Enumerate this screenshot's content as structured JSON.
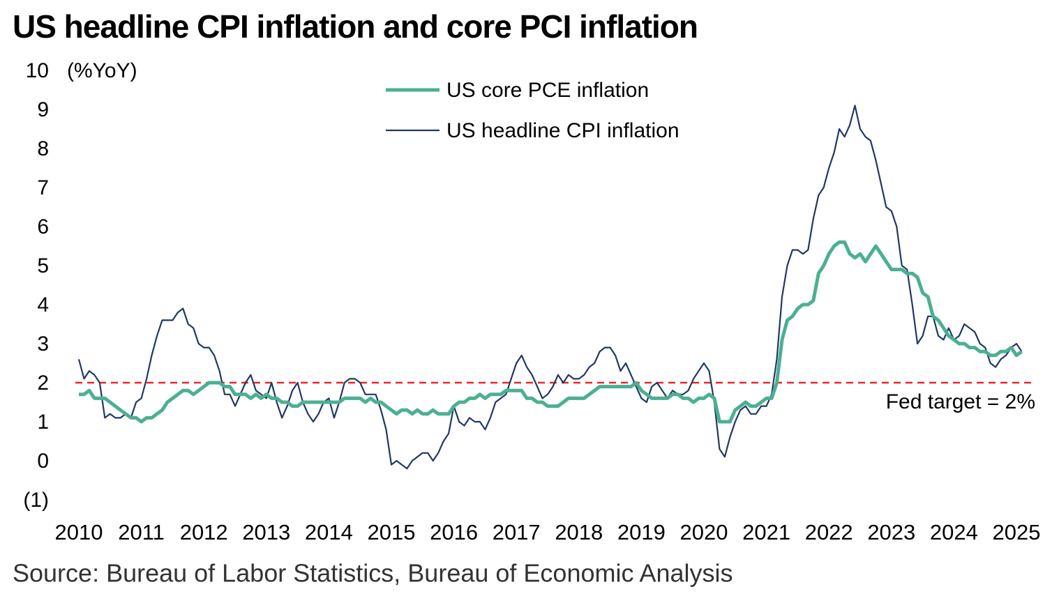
{
  "chart_data": {
    "type": "line",
    "title": "US headline CPI inflation and core PCI inflation",
    "y_unit_label": "(%YoY)",
    "source": "Source: Bureau of Labor Statistics, Bureau of Economic Analysis",
    "categories": [
      "2010",
      null,
      null,
      null,
      null,
      null,
      null,
      null,
      null,
      null,
      null,
      null,
      "2011",
      null,
      null,
      null,
      null,
      null,
      null,
      null,
      null,
      null,
      null,
      null,
      "2012",
      null,
      null,
      null,
      null,
      null,
      null,
      null,
      null,
      null,
      null,
      null,
      "2013",
      null,
      null,
      null,
      null,
      null,
      null,
      null,
      null,
      null,
      null,
      null,
      "2014",
      null,
      null,
      null,
      null,
      null,
      null,
      null,
      null,
      null,
      null,
      null,
      "2015",
      null,
      null,
      null,
      null,
      null,
      null,
      null,
      null,
      null,
      null,
      null,
      "2016",
      null,
      null,
      null,
      null,
      null,
      null,
      null,
      null,
      null,
      null,
      null,
      "2017",
      null,
      null,
      null,
      null,
      null,
      null,
      null,
      null,
      null,
      null,
      null,
      "2018",
      null,
      null,
      null,
      null,
      null,
      null,
      null,
      null,
      null,
      null,
      null,
      "2019",
      null,
      null,
      null,
      null,
      null,
      null,
      null,
      null,
      null,
      null,
      null,
      "2020",
      null,
      null,
      null,
      null,
      null,
      null,
      null,
      null,
      null,
      null,
      null,
      "2021",
      null,
      null,
      null,
      null,
      null,
      null,
      null,
      null,
      null,
      null,
      null,
      "2022",
      null,
      null,
      null,
      null,
      null,
      null,
      null,
      null,
      null,
      null,
      null,
      "2023",
      null,
      null,
      null,
      null,
      null,
      null,
      null,
      null,
      null,
      null,
      null,
      "2024",
      null,
      null,
      null,
      null,
      null,
      null,
      null,
      null,
      null,
      null,
      null,
      "2025",
      null
    ],
    "series": [
      {
        "name": "US core PCE inflation",
        "color": "#4bb092",
        "width": 5,
        "values": [
          1.7,
          1.7,
          1.8,
          1.6,
          1.6,
          1.6,
          1.5,
          1.4,
          1.3,
          1.2,
          1.1,
          1.1,
          1.0,
          1.1,
          1.1,
          1.2,
          1.3,
          1.5,
          1.6,
          1.7,
          1.8,
          1.8,
          1.7,
          1.8,
          1.9,
          2.0,
          2.0,
          2.0,
          1.9,
          1.9,
          1.7,
          1.7,
          1.7,
          1.6,
          1.7,
          1.6,
          1.7,
          1.6,
          1.6,
          1.5,
          1.5,
          1.4,
          1.4,
          1.5,
          1.5,
          1.5,
          1.5,
          1.5,
          1.5,
          1.5,
          1.5,
          1.6,
          1.6,
          1.6,
          1.6,
          1.5,
          1.6,
          1.5,
          1.5,
          1.4,
          1.3,
          1.2,
          1.3,
          1.3,
          1.2,
          1.3,
          1.2,
          1.2,
          1.3,
          1.2,
          1.2,
          1.2,
          1.4,
          1.5,
          1.5,
          1.6,
          1.6,
          1.7,
          1.6,
          1.7,
          1.7,
          1.7,
          1.8,
          1.8,
          1.8,
          1.8,
          1.6,
          1.6,
          1.5,
          1.5,
          1.4,
          1.4,
          1.4,
          1.5,
          1.6,
          1.6,
          1.6,
          1.6,
          1.7,
          1.8,
          1.9,
          1.9,
          1.9,
          1.9,
          1.9,
          1.9,
          1.9,
          2.0,
          1.8,
          1.7,
          1.6,
          1.6,
          1.6,
          1.6,
          1.7,
          1.7,
          1.6,
          1.6,
          1.5,
          1.6,
          1.6,
          1.7,
          1.6,
          1.0,
          1.0,
          1.0,
          1.3,
          1.4,
          1.5,
          1.4,
          1.4,
          1.5,
          1.6,
          1.6,
          2.0,
          3.1,
          3.6,
          3.7,
          3.9,
          4.0,
          4.0,
          4.1,
          4.8,
          5.0,
          5.3,
          5.5,
          5.6,
          5.6,
          5.3,
          5.2,
          5.3,
          5.1,
          5.3,
          5.5,
          5.3,
          5.1,
          4.9,
          4.9,
          4.9,
          4.8,
          4.8,
          4.7,
          4.3,
          4.2,
          3.7,
          3.6,
          3.4,
          3.2,
          3.1,
          3.0,
          3.0,
          2.9,
          2.9,
          2.8,
          2.8,
          2.7,
          2.7,
          2.8,
          2.8,
          2.9,
          2.7,
          2.8
        ]
      },
      {
        "name": "US headline CPI inflation",
        "color": "#1f3864",
        "width": 2.2,
        "values": [
          2.6,
          2.1,
          2.3,
          2.2,
          2.0,
          1.1,
          1.2,
          1.1,
          1.1,
          1.2,
          1.1,
          1.5,
          1.6,
          2.1,
          2.7,
          3.2,
          3.6,
          3.6,
          3.6,
          3.8,
          3.9,
          3.5,
          3.4,
          3.0,
          2.9,
          2.9,
          2.7,
          2.3,
          1.7,
          1.7,
          1.4,
          1.7,
          2.0,
          2.2,
          1.8,
          1.7,
          1.6,
          2.0,
          1.5,
          1.1,
          1.4,
          1.8,
          2.0,
          1.5,
          1.2,
          1.0,
          1.2,
          1.5,
          1.6,
          1.1,
          1.5,
          2.0,
          2.1,
          2.1,
          2.0,
          1.7,
          1.7,
          1.7,
          1.3,
          0.8,
          -0.1,
          0.0,
          -0.1,
          -0.2,
          0.0,
          0.1,
          0.2,
          0.2,
          0.0,
          0.2,
          0.5,
          0.7,
          1.4,
          1.0,
          0.9,
          1.1,
          1.0,
          1.0,
          0.8,
          1.1,
          1.5,
          1.6,
          1.7,
          2.1,
          2.5,
          2.7,
          2.4,
          2.2,
          1.9,
          1.6,
          1.7,
          1.9,
          2.2,
          2.0,
          2.2,
          2.1,
          2.1,
          2.2,
          2.4,
          2.5,
          2.8,
          2.9,
          2.9,
          2.7,
          2.3,
          2.5,
          2.2,
          1.9,
          1.6,
          1.5,
          1.9,
          2.0,
          1.8,
          1.6,
          1.8,
          1.7,
          1.7,
          1.8,
          2.1,
          2.3,
          2.5,
          2.3,
          1.5,
          0.3,
          0.1,
          0.6,
          1.0,
          1.3,
          1.4,
          1.2,
          1.2,
          1.4,
          1.4,
          1.7,
          2.6,
          4.2,
          5.0,
          5.4,
          5.4,
          5.3,
          5.4,
          6.2,
          6.8,
          7.0,
          7.5,
          7.9,
          8.5,
          8.3,
          8.6,
          9.1,
          8.5,
          8.3,
          8.2,
          7.7,
          7.1,
          6.5,
          6.4,
          6.0,
          5.0,
          4.9,
          4.0,
          3.0,
          3.2,
          3.7,
          3.7,
          3.2,
          3.1,
          3.4,
          3.1,
          3.2,
          3.5,
          3.4,
          3.3,
          3.0,
          2.9,
          2.5,
          2.4,
          2.6,
          2.7,
          2.9,
          3.0,
          2.8
        ]
      }
    ],
    "ylim": [
      -1,
      10
    ],
    "yticks": [
      {
        "value": -1,
        "label": "(1)"
      },
      0,
      1,
      2,
      3,
      4,
      5,
      6,
      7,
      8,
      9,
      10
    ],
    "grid": false,
    "reference_line": {
      "value": 2,
      "label": "Fed target = 2%",
      "color": "#e8282b"
    },
    "legend": "top"
  }
}
